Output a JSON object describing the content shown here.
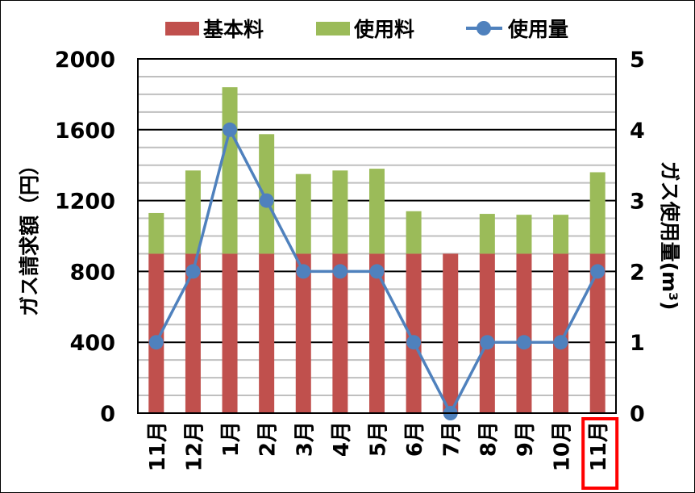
{
  "chart_data": {
    "type": "bar",
    "stacked": true,
    "categories": [
      "11月",
      "12月",
      "1月",
      "2月",
      "3月",
      "4月",
      "5月",
      "6月",
      "7月",
      "8月",
      "9月",
      "10月",
      "11月"
    ],
    "series": [
      {
        "name": "基本料",
        "type": "bar",
        "axis": "left",
        "color": "#c0504d",
        "values": [
          900,
          900,
          900,
          900,
          900,
          900,
          900,
          900,
          900,
          900,
          900,
          900,
          900
        ]
      },
      {
        "name": "使用料",
        "type": "bar",
        "axis": "left",
        "color": "#9bbb59",
        "values": [
          230,
          470,
          940,
          675,
          450,
          470,
          480,
          240,
          0,
          225,
          220,
          220,
          460
        ]
      },
      {
        "name": "使用量",
        "type": "line",
        "axis": "right",
        "color": "#4f81bd",
        "values": [
          1,
          2,
          4,
          3,
          2,
          2,
          2,
          1,
          0,
          1,
          1,
          1,
          2
        ]
      }
    ],
    "ylabel": "ガス請求額（円）",
    "ylabel_right": "ガス使用量(m³)",
    "ylim": [
      0,
      2000
    ],
    "ylim_right": [
      0,
      5
    ],
    "yticks": [
      "0",
      "400",
      "800",
      "1200",
      "1600",
      "2000"
    ],
    "yticks_right": [
      "0",
      "1",
      "2",
      "3",
      "4",
      "5"
    ],
    "grid": true,
    "legend_position": "top",
    "highlighted_category_index": 12,
    "highlight_color": "#ff0000"
  }
}
